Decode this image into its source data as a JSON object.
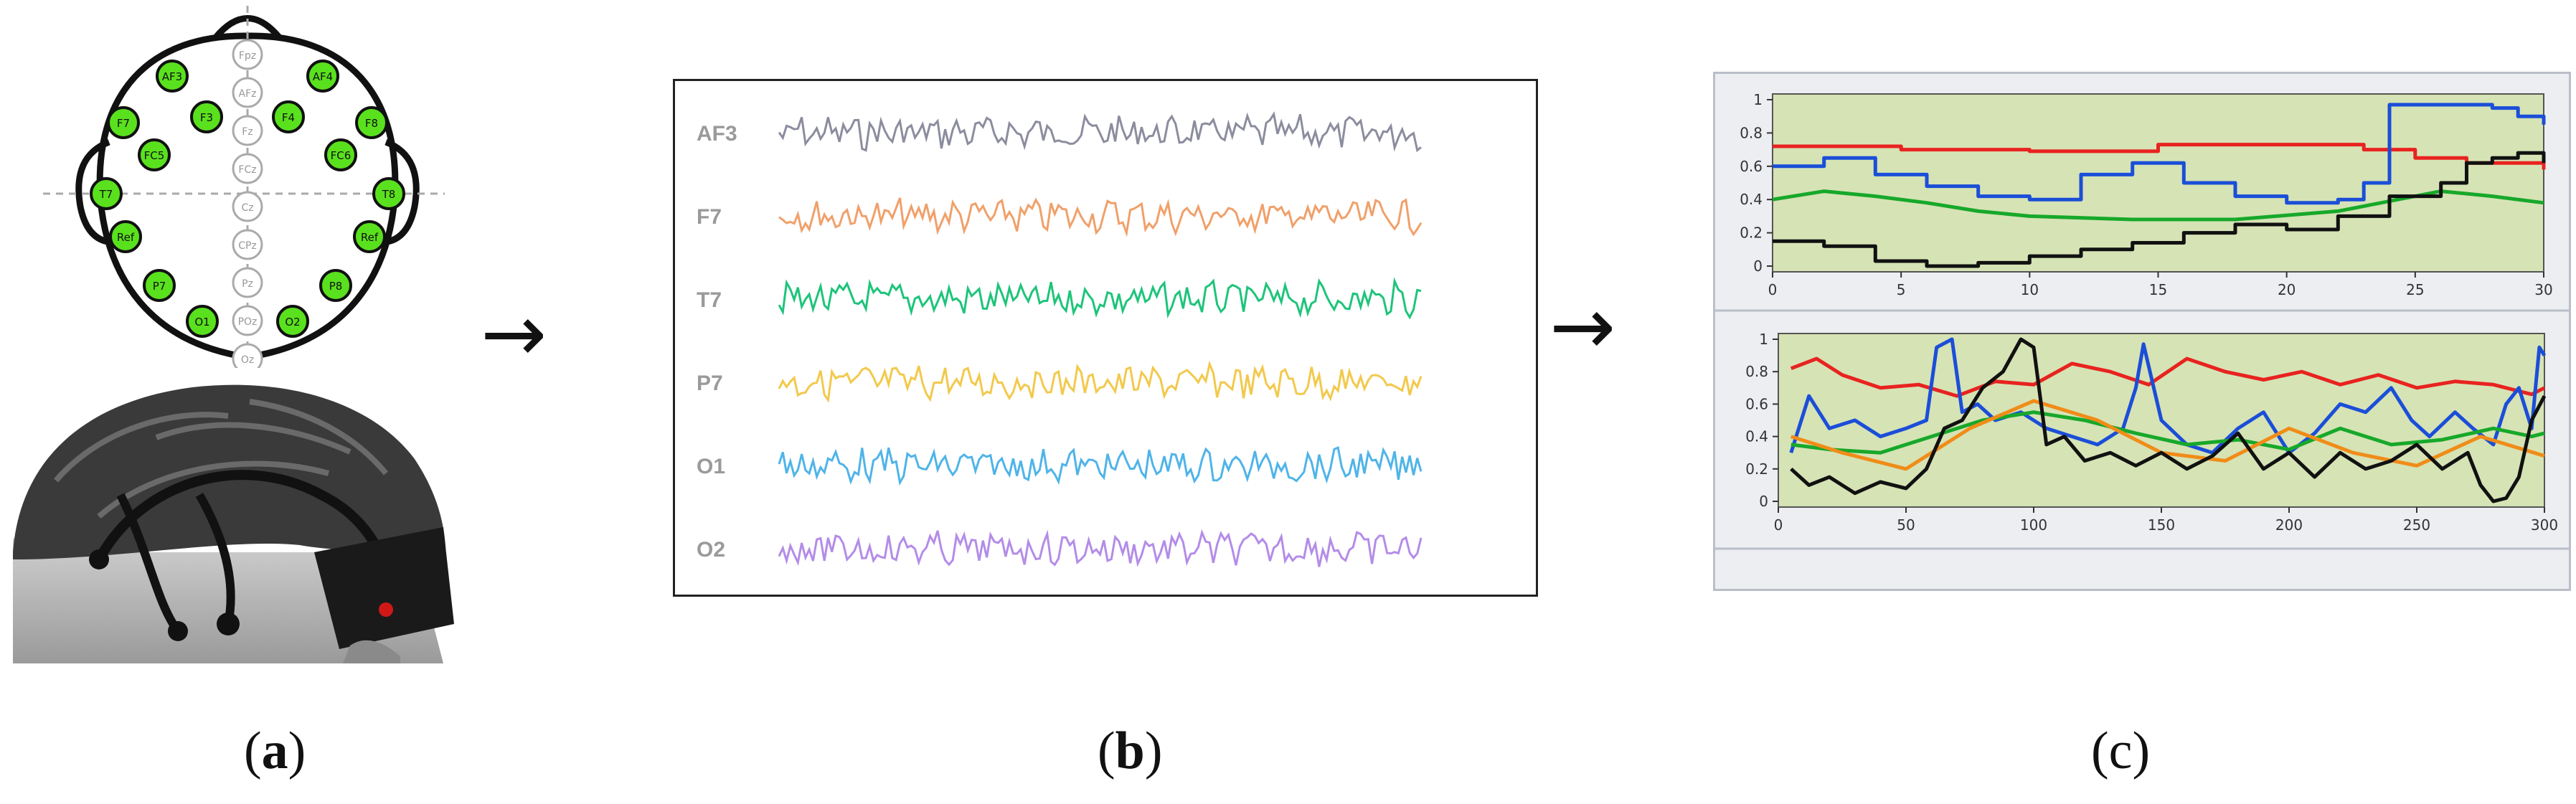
{
  "arrows": {
    "first": "→",
    "second": "→"
  },
  "captions": {
    "a": "a",
    "b": "b",
    "c": "c"
  },
  "electrodes": {
    "active": [
      "AF3",
      "AF4",
      "F7",
      "F3",
      "F4",
      "F8",
      "FC5",
      "FC6",
      "T7",
      "T8",
      "Ref",
      "Ref",
      "P7",
      "P8",
      "O1",
      "O2"
    ],
    "midline": [
      "Fpz",
      "AFz",
      "Fz",
      "FCz",
      "Cz",
      "CPz",
      "Pz",
      "POz",
      "Oz"
    ]
  },
  "eeg": {
    "channels": [
      {
        "label": "AF3",
        "color": "#8b8d9e"
      },
      {
        "label": "F7",
        "color": "#f0a06a"
      },
      {
        "label": "T7",
        "color": "#1ec47a"
      },
      {
        "label": "P7",
        "color": "#f2c94c"
      },
      {
        "label": "O1",
        "color": "#4fb4e8"
      },
      {
        "label": "O2",
        "color": "#b48ce8"
      }
    ]
  },
  "chart_data": [
    {
      "type": "line",
      "xlim": [
        0,
        30
      ],
      "ylim": [
        0,
        1
      ],
      "xticks": [
        "0",
        "5",
        "10",
        "15",
        "20",
        "25",
        "30"
      ],
      "yticks": [
        "0",
        "0.2",
        "0.4",
        "0.6",
        "0.8",
        "1"
      ],
      "series": [
        {
          "color": "#e8231f",
          "x": [
            0,
            5,
            10,
            15,
            20,
            23,
            25,
            27,
            30
          ],
          "y": [
            0.72,
            0.7,
            0.69,
            0.73,
            0.73,
            0.7,
            0.65,
            0.62,
            0.58
          ]
        },
        {
          "color": "#1b4ed8",
          "x": [
            0,
            2,
            4,
            6,
            8,
            10,
            12,
            14,
            16,
            18,
            20,
            22,
            23,
            24,
            26,
            28,
            29,
            30
          ],
          "y": [
            0.6,
            0.65,
            0.55,
            0.48,
            0.42,
            0.4,
            0.55,
            0.62,
            0.5,
            0.42,
            0.38,
            0.4,
            0.5,
            0.97,
            0.97,
            0.95,
            0.9,
            0.85
          ]
        },
        {
          "color": "#17a82a",
          "x": [
            0,
            2,
            4,
            6,
            8,
            10,
            14,
            18,
            22,
            26,
            28,
            30
          ],
          "y": [
            0.4,
            0.45,
            0.42,
            0.38,
            0.33,
            0.3,
            0.28,
            0.28,
            0.33,
            0.45,
            0.42,
            0.38
          ]
        },
        {
          "color": "#111111",
          "x": [
            0,
            2,
            4,
            6,
            8,
            10,
            12,
            14,
            16,
            18,
            20,
            22,
            24,
            26,
            27,
            28,
            29,
            30
          ],
          "y": [
            0.15,
            0.12,
            0.03,
            0.0,
            0.02,
            0.06,
            0.1,
            0.14,
            0.2,
            0.25,
            0.22,
            0.3,
            0.42,
            0.5,
            0.62,
            0.65,
            0.68,
            0.62
          ]
        }
      ]
    },
    {
      "type": "line",
      "xlim": [
        0,
        300
      ],
      "ylim": [
        0,
        1
      ],
      "xticks": [
        "0",
        "50",
        "100",
        "150",
        "200",
        "250",
        "300"
      ],
      "yticks": [
        "0",
        "0.2",
        "0.4",
        "0.6",
        "0.8",
        "1"
      ],
      "series": [
        {
          "color": "#e8231f",
          "x": [
            5,
            15,
            25,
            40,
            55,
            70,
            85,
            100,
            115,
            130,
            145,
            160,
            175,
            190,
            205,
            220,
            235,
            250,
            265,
            280,
            295,
            300
          ],
          "y": [
            0.82,
            0.88,
            0.78,
            0.7,
            0.72,
            0.65,
            0.74,
            0.72,
            0.85,
            0.8,
            0.72,
            0.88,
            0.8,
            0.75,
            0.8,
            0.72,
            0.78,
            0.7,
            0.74,
            0.72,
            0.66,
            0.7
          ]
        },
        {
          "color": "#1b4ed8",
          "x": [
            5,
            12,
            20,
            30,
            40,
            50,
            58,
            62,
            68,
            72,
            78,
            85,
            95,
            105,
            115,
            125,
            135,
            140,
            143,
            150,
            160,
            170,
            180,
            190,
            200,
            210,
            220,
            230,
            240,
            248,
            255,
            265,
            272,
            280,
            285,
            290,
            295,
            298,
            300
          ],
          "y": [
            0.3,
            0.65,
            0.45,
            0.5,
            0.4,
            0.45,
            0.5,
            0.95,
            1.0,
            0.55,
            0.6,
            0.5,
            0.55,
            0.45,
            0.4,
            0.35,
            0.45,
            0.7,
            0.97,
            0.5,
            0.35,
            0.3,
            0.45,
            0.55,
            0.3,
            0.42,
            0.6,
            0.55,
            0.7,
            0.5,
            0.4,
            0.55,
            0.45,
            0.35,
            0.6,
            0.7,
            0.45,
            0.95,
            0.9
          ]
        },
        {
          "color": "#17a82a",
          "x": [
            5,
            20,
            40,
            60,
            80,
            100,
            120,
            140,
            160,
            180,
            200,
            220,
            240,
            260,
            280,
            295,
            300
          ],
          "y": [
            0.35,
            0.32,
            0.3,
            0.4,
            0.5,
            0.55,
            0.5,
            0.42,
            0.35,
            0.38,
            0.32,
            0.45,
            0.35,
            0.38,
            0.45,
            0.4,
            0.42
          ]
        },
        {
          "color": "#f08c18",
          "x": [
            5,
            25,
            50,
            75,
            100,
            125,
            150,
            175,
            200,
            225,
            250,
            275,
            300
          ],
          "y": [
            0.4,
            0.3,
            0.2,
            0.45,
            0.62,
            0.5,
            0.3,
            0.25,
            0.45,
            0.3,
            0.22,
            0.4,
            0.28
          ]
        },
        {
          "color": "#111111",
          "x": [
            5,
            12,
            20,
            30,
            40,
            50,
            58,
            65,
            72,
            80,
            88,
            95,
            100,
            105,
            112,
            120,
            130,
            140,
            150,
            160,
            170,
            180,
            190,
            200,
            210,
            220,
            230,
            240,
            250,
            260,
            270,
            275,
            280,
            285,
            290,
            295,
            300
          ],
          "y": [
            0.2,
            0.1,
            0.15,
            0.05,
            0.12,
            0.08,
            0.2,
            0.45,
            0.5,
            0.7,
            0.8,
            1.0,
            0.95,
            0.35,
            0.4,
            0.25,
            0.3,
            0.22,
            0.3,
            0.2,
            0.28,
            0.42,
            0.2,
            0.3,
            0.15,
            0.3,
            0.2,
            0.25,
            0.35,
            0.2,
            0.3,
            0.1,
            0.0,
            0.02,
            0.15,
            0.5,
            0.65
          ]
        }
      ]
    }
  ]
}
